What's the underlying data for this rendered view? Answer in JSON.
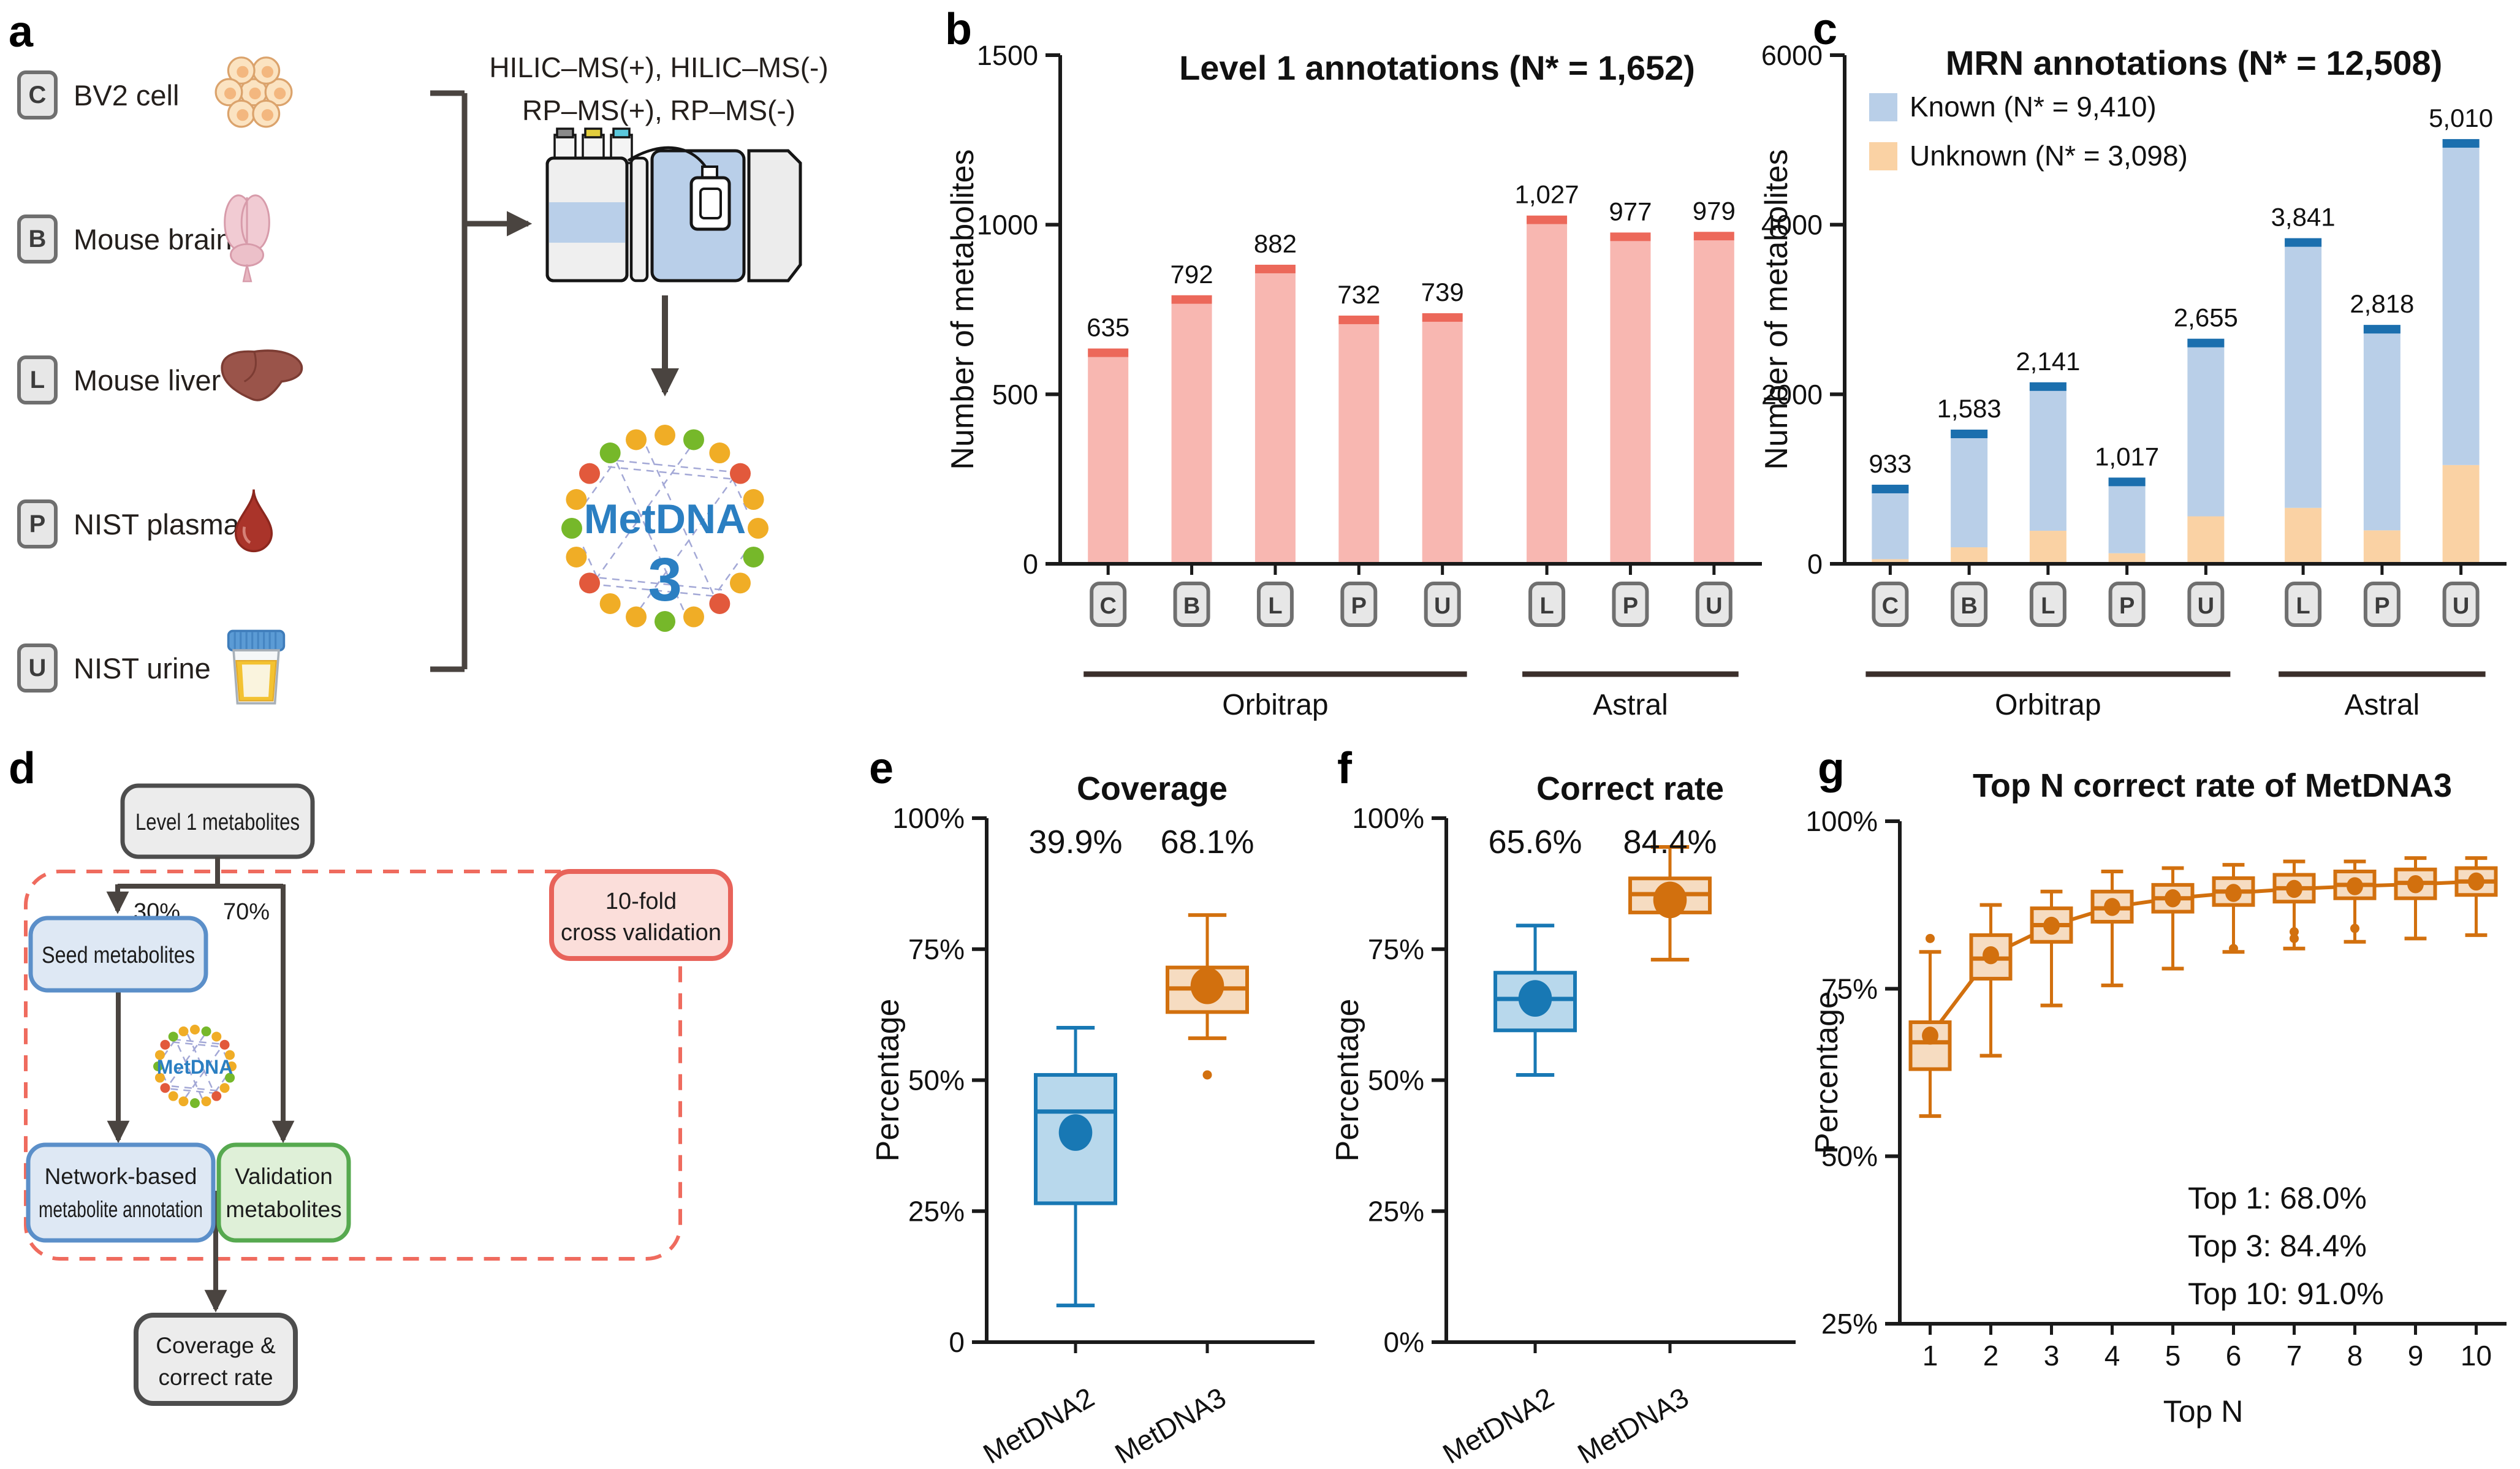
{
  "figure": {
    "panel_labels": [
      "a",
      "b",
      "c",
      "d",
      "e",
      "f",
      "g"
    ]
  },
  "panel_a": {
    "samples": [
      {
        "code": "C",
        "label": "BV2 cell",
        "icon": "cell-cluster-icon"
      },
      {
        "code": "B",
        "label": "Mouse brain",
        "icon": "mouse-brain-icon"
      },
      {
        "code": "L",
        "label": "Mouse liver",
        "icon": "mouse-liver-icon"
      },
      {
        "code": "P",
        "label": "NIST plasma",
        "icon": "blood-drop-icon"
      },
      {
        "code": "U",
        "label": "NIST urine",
        "icon": "urine-cup-icon"
      }
    ],
    "methods_line1": "HILIC–MS(+), HILIC–MS(-)",
    "methods_line2": "RP–MS(+), RP–MS(-)",
    "logo": {
      "name": "MetDNA",
      "version": "3",
      "text_color": "#2B7FC2",
      "dot_colors": [
        "#F0AD26",
        "#76B82A",
        "#E2593C"
      ]
    }
  },
  "panel_d": {
    "level1": "Level 1 metabolites",
    "pct30": "30%",
    "pct70": "70%",
    "crossval_line1": "10-fold",
    "crossval_line2": "cross validation",
    "seed": "Seed metabolites",
    "logo_text": "MetDNA",
    "network_line1": "Network-based",
    "network_line2": "metabolite annotation",
    "validation_line1": "Validation",
    "validation_line2": "metabolites",
    "coverage_line1": "Coverage &",
    "coverage_line2": "correct rate",
    "colors": {
      "gray_fill": "#ECECEC",
      "gray_border": "#4D4D4D",
      "blue_fill": "#DEE8F4",
      "blue_border": "#5B8FC9",
      "green_fill": "#DFF0D8",
      "green_border": "#56A94F",
      "red_fill": "#FBDEDA",
      "red_border": "#E8635A",
      "dash_color": "#EF6B5E",
      "arrow_color": "#4A4440"
    }
  },
  "chart_data": [
    {
      "panel": "b",
      "type": "bar",
      "title": "Level 1 annotations (N* = 1,652)",
      "ylabel": "Number of metabolites",
      "ylim": [
        0,
        1500
      ],
      "yticks": [
        {
          "v": 0,
          "label": "0"
        },
        {
          "v": 500,
          "label": "500"
        },
        {
          "v": 1000,
          "label": "1000"
        },
        {
          "v": 1500,
          "label": "1500"
        }
      ],
      "categories": [
        "C",
        "B",
        "L",
        "P",
        "U",
        "L",
        "P",
        "U"
      ],
      "values": [
        635,
        792,
        882,
        732,
        739,
        1027,
        977,
        979
      ],
      "value_labels": [
        "635",
        "792",
        "882",
        "732",
        "739",
        "1,027",
        "977",
        "979"
      ],
      "groups": [
        {
          "label": "Orbitrap",
          "from": 0,
          "to": 4
        },
        {
          "label": "Astral",
          "from": 5,
          "to": 7
        }
      ],
      "bar_color": "#F8B7B1",
      "cap_color": "#EC685A"
    },
    {
      "panel": "c",
      "type": "stacked_bar",
      "title": "MRN annotations (N* = 12,508)",
      "ylabel": "Number of metabolites",
      "ylim": [
        0,
        6000
      ],
      "yticks": [
        {
          "v": 0,
          "label": "0"
        },
        {
          "v": 2000,
          "label": "2000"
        },
        {
          "v": 4000,
          "label": "4000"
        },
        {
          "v": 6000,
          "label": "6000"
        }
      ],
      "categories": [
        "C",
        "B",
        "L",
        "P",
        "U",
        "L",
        "P",
        "U"
      ],
      "totals": [
        933,
        1583,
        2141,
        1017,
        2655,
        3841,
        2818,
        5010
      ],
      "total_labels": [
        "933",
        "1,583",
        "2,141",
        "1,017",
        "2,655",
        "3,841",
        "2,818",
        "5,010"
      ],
      "series": [
        {
          "name": "Unknown",
          "color": "#FAD2A4",
          "values": [
            55,
            195,
            390,
            125,
            560,
            660,
            395,
            1165
          ]
        },
        {
          "name": "Known",
          "color": "#B9CFE8",
          "values": [
            878,
            1388,
            1751,
            892,
            2095,
            3181,
            2423,
            3845
          ]
        }
      ],
      "cap_color": "#1B6FAE",
      "legend": [
        {
          "label": "Known (N* = 9,410)",
          "color": "#B9CFE8"
        },
        {
          "label": "Unknown (N* = 3,098)",
          "color": "#FAD2A4"
        }
      ],
      "groups": [
        {
          "label": "Orbitrap",
          "from": 0,
          "to": 4
        },
        {
          "label": "Astral",
          "from": 5,
          "to": 7
        }
      ]
    },
    {
      "panel": "e",
      "type": "box",
      "title": "Coverage",
      "ylabel": "Percentage",
      "ylim": [
        0,
        100
      ],
      "yticks": [
        {
          "v": 0,
          "label": "0"
        },
        {
          "v": 25,
          "label": "25%"
        },
        {
          "v": 50,
          "label": "50%"
        },
        {
          "v": 75,
          "label": "75%"
        },
        {
          "v": 100,
          "label": "100%"
        }
      ],
      "categories": [
        "MetDNA2",
        "MetDNA3"
      ],
      "annotations": [
        "39.9%",
        "68.1%"
      ],
      "boxes": [
        {
          "color": "#1878B4",
          "fill": "#B8D8EC",
          "lo": 7,
          "q1": 26.5,
          "med": 44,
          "q3": 51,
          "hi": 60,
          "mean": 40,
          "outliers": []
        },
        {
          "color": "#D2700E",
          "fill": "#F6DCC1",
          "lo": 58,
          "q1": 63,
          "med": 67.5,
          "q3": 71.5,
          "hi": 81.5,
          "mean": 68,
          "outliers": [
            51
          ]
        }
      ]
    },
    {
      "panel": "f",
      "type": "box",
      "title": "Correct rate",
      "ylabel": "Percentage",
      "ylim": [
        0,
        100
      ],
      "yticks": [
        {
          "v": 0,
          "label": "0%"
        },
        {
          "v": 25,
          "label": "25%"
        },
        {
          "v": 50,
          "label": "50%"
        },
        {
          "v": 75,
          "label": "75%"
        },
        {
          "v": 100,
          "label": "100%"
        }
      ],
      "categories": [
        "MetDNA2",
        "MetDNA3"
      ],
      "annotations": [
        "65.6%",
        "84.4%"
      ],
      "boxes": [
        {
          "color": "#1878B4",
          "fill": "#B8D8EC",
          "lo": 51,
          "q1": 59.5,
          "med": 65.5,
          "q3": 70.5,
          "hi": 79.5,
          "mean": 65.6,
          "outliers": []
        },
        {
          "color": "#D2700E",
          "fill": "#F6DCC1",
          "lo": 73,
          "q1": 82,
          "med": 85.5,
          "q3": 88.5,
          "hi": 94.5,
          "mean": 84.4,
          "outliers": []
        }
      ]
    },
    {
      "panel": "g",
      "type": "box_series",
      "title": "Top N correct rate of MetDNA3",
      "ylabel": "Percentage",
      "xlabel": "Top N",
      "ylim": [
        25,
        100
      ],
      "yticks": [
        {
          "v": 25,
          "label": "25%"
        },
        {
          "v": 50,
          "label": "50%"
        },
        {
          "v": 75,
          "label": "75%"
        },
        {
          "v": 100,
          "label": "100%"
        }
      ],
      "categories": [
        "1",
        "2",
        "3",
        "4",
        "5",
        "6",
        "7",
        "8",
        "9",
        "10"
      ],
      "color": "#D2700E",
      "fill": "#F6DCC1",
      "annotation_lines": [
        "Top 1: 68.0%",
        "Top 3: 84.4%",
        "Top 10: 91.0%"
      ],
      "boxes": [
        {
          "lo": 56,
          "q1": 63,
          "med": 67,
          "q3": 70,
          "hi": 80.5,
          "mean": 68,
          "outliers": [
            82.5
          ]
        },
        {
          "lo": 65,
          "q1": 76.5,
          "med": 79.5,
          "q3": 83,
          "hi": 87.5,
          "mean": 80,
          "outliers": []
        },
        {
          "lo": 72.5,
          "q1": 82,
          "med": 84.5,
          "q3": 87,
          "hi": 89.5,
          "mean": 84.4,
          "outliers": []
        },
        {
          "lo": 75.5,
          "q1": 85,
          "med": 87,
          "q3": 89.5,
          "hi": 92.5,
          "mean": 87.2,
          "outliers": []
        },
        {
          "lo": 78,
          "q1": 86.5,
          "med": 88.5,
          "q3": 90.5,
          "hi": 93,
          "mean": 88.5,
          "outliers": []
        },
        {
          "lo": 80.5,
          "q1": 87.5,
          "med": 89.5,
          "q3": 91.5,
          "hi": 93.5,
          "mean": 89.3,
          "outliers": [
            81
          ]
        },
        {
          "lo": 81,
          "q1": 88,
          "med": 90,
          "q3": 92,
          "hi": 94,
          "mean": 89.9,
          "outliers": [
            83.5,
            82.5
          ]
        },
        {
          "lo": 82,
          "q1": 88.5,
          "med": 90.5,
          "q3": 92.5,
          "hi": 94,
          "mean": 90.3,
          "outliers": [
            84
          ]
        },
        {
          "lo": 82.5,
          "q1": 88.5,
          "med": 90.8,
          "q3": 92.8,
          "hi": 94.5,
          "mean": 90.6,
          "outliers": []
        },
        {
          "lo": 83,
          "q1": 89,
          "med": 91,
          "q3": 93,
          "hi": 94.5,
          "mean": 91,
          "outliers": []
        }
      ]
    }
  ]
}
